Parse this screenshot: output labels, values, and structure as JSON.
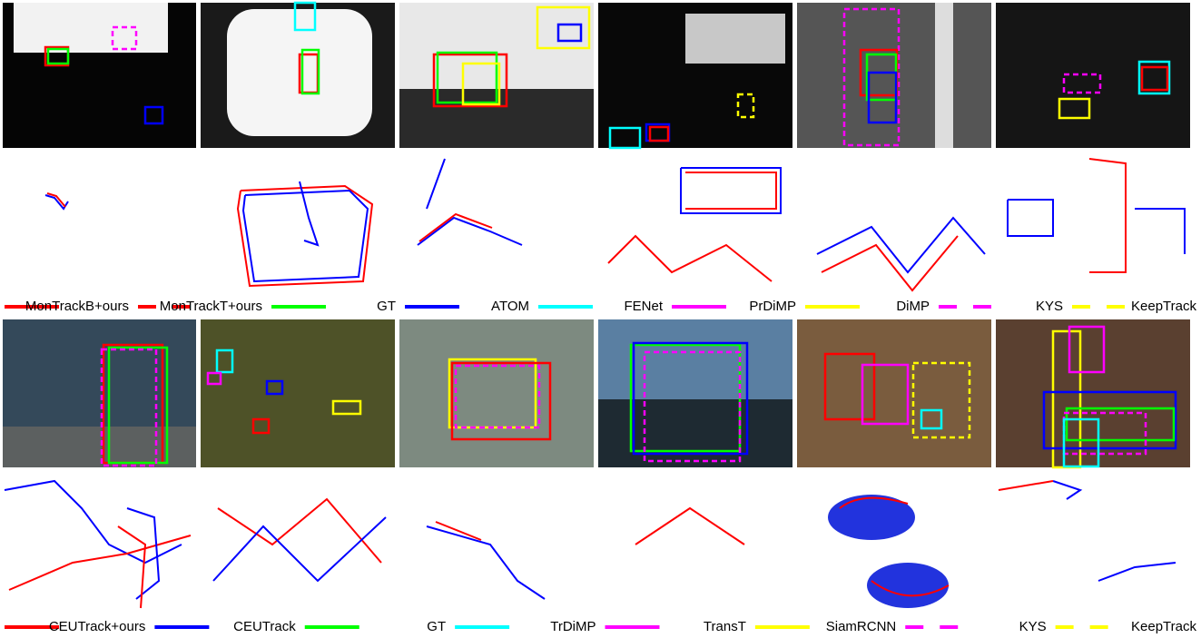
{
  "legends": [
    {
      "items": [
        {
          "name": "MonTrackB+ours",
          "color": "#ff0000",
          "style": "solid"
        },
        {
          "name": "MonTrackT+ours",
          "color": "#ff0000",
          "style": "dashed"
        },
        {
          "name": "GT",
          "color": "#00ff00",
          "style": "solid"
        },
        {
          "name": "ATOM",
          "color": "#0000ff",
          "style": "solid"
        },
        {
          "name": "FENet",
          "color": "#00ffff",
          "style": "solid"
        },
        {
          "name": "PrDiMP",
          "color": "#ff00ff",
          "style": "solid"
        },
        {
          "name": "DiMP",
          "color": "#ffff00",
          "style": "solid"
        },
        {
          "name": "KYS",
          "color": "#ff00ff",
          "style": "dashed"
        },
        {
          "name": "KeepTrack",
          "color": "#ffff00",
          "style": "dashed"
        }
      ]
    },
    {
      "items": [
        {
          "name": "CEUTrack+ours",
          "color": "#ff0000",
          "style": "solid"
        },
        {
          "name": "CEUTrack",
          "color": "#0000ff",
          "style": "solid"
        },
        {
          "name": "GT",
          "color": "#00ff00",
          "style": "solid"
        },
        {
          "name": "TrDiMP",
          "color": "#00ffff",
          "style": "solid"
        },
        {
          "name": "TransT",
          "color": "#ff00ff",
          "style": "solid"
        },
        {
          "name": "SiamRCNN",
          "color": "#ffff00",
          "style": "solid"
        },
        {
          "name": "KYS",
          "color": "#ff00ff",
          "style": "dashed"
        },
        {
          "name": "KeepTrack",
          "color": "#ffff00",
          "style": "dashed"
        }
      ]
    }
  ]
}
